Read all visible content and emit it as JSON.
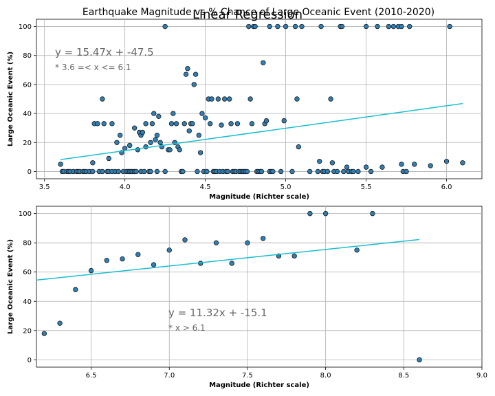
{
  "figure": {
    "suptitle": "Earthquake Magnitude vs % Chance of Large Oceanic Event (2010-2020)",
    "overlay_title": "Linear Regression"
  },
  "colors": {
    "marker_fill": "#2f7fb5",
    "marker_edge": "#1a1a1a",
    "regression": "#17becf",
    "annotation": "#666666",
    "grid": "#b0b0b0"
  },
  "chart_data": [
    {
      "type": "scatter",
      "title": "",
      "xlabel": "Magnitude (Richter scale)",
      "ylabel": "Large Oceanic Event (%)",
      "xlim": [
        3.45,
        6.22
      ],
      "ylim": [
        -5,
        105
      ],
      "xticks": [
        3.5,
        4.0,
        4.5,
        5.0,
        5.5,
        6.0
      ],
      "xtick_labels": [
        "3.5",
        "4.0",
        "4.5",
        "5.0",
        "5.5",
        "6.0"
      ],
      "yticks": [
        0,
        20,
        40,
        60,
        80,
        100
      ],
      "ytick_labels": [
        "0",
        "20",
        "40",
        "60",
        "80",
        "100"
      ],
      "grid": true,
      "regression": {
        "equation": "y = 15.47x + -47.5",
        "condition": "* 3.6 =< x <= 6.1",
        "slope": 15.47,
        "intercept": -47.5,
        "x_range": [
          3.6,
          6.1
        ]
      },
      "points": [
        [
          3.6,
          5
        ],
        [
          3.61,
          0
        ],
        [
          3.62,
          0
        ],
        [
          3.64,
          0
        ],
        [
          3.65,
          0
        ],
        [
          3.66,
          0
        ],
        [
          3.68,
          0
        ],
        [
          3.7,
          0
        ],
        [
          3.71,
          0
        ],
        [
          3.72,
          0
        ],
        [
          3.74,
          0
        ],
        [
          3.75,
          0
        ],
        [
          3.76,
          0
        ],
        [
          3.78,
          0
        ],
        [
          3.8,
          0
        ],
        [
          3.8,
          6
        ],
        [
          3.81,
          33
        ],
        [
          3.83,
          33
        ],
        [
          3.84,
          0
        ],
        [
          3.86,
          0
        ],
        [
          3.86,
          50
        ],
        [
          3.87,
          33
        ],
        [
          3.89,
          0
        ],
        [
          3.9,
          0
        ],
        [
          3.9,
          9
        ],
        [
          3.92,
          0
        ],
        [
          3.92,
          33
        ],
        [
          3.94,
          0
        ],
        [
          3.95,
          20
        ],
        [
          3.96,
          0
        ],
        [
          3.97,
          25
        ],
        [
          3.98,
          13
        ],
        [
          3.99,
          0
        ],
        [
          4.0,
          16
        ],
        [
          4.01,
          0
        ],
        [
          4.02,
          0
        ],
        [
          4.03,
          0
        ],
        [
          4.03,
          18
        ],
        [
          4.04,
          0
        ],
        [
          4.05,
          0
        ],
        [
          4.06,
          0
        ],
        [
          4.06,
          30
        ],
        [
          4.07,
          0
        ],
        [
          4.08,
          15
        ],
        [
          4.09,
          27
        ],
        [
          4.1,
          0
        ],
        [
          4.1,
          25
        ],
        [
          4.11,
          27
        ],
        [
          4.12,
          0
        ],
        [
          4.13,
          33
        ],
        [
          4.13,
          17
        ],
        [
          4.15,
          0
        ],
        [
          4.16,
          0
        ],
        [
          4.16,
          20
        ],
        [
          4.17,
          33
        ],
        [
          4.18,
          40
        ],
        [
          4.19,
          22
        ],
        [
          4.2,
          0
        ],
        [
          4.2,
          25
        ],
        [
          4.21,
          38
        ],
        [
          4.22,
          20
        ],
        [
          4.23,
          17
        ],
        [
          4.25,
          0
        ],
        [
          4.25,
          100
        ],
        [
          4.27,
          15
        ],
        [
          4.28,
          15
        ],
        [
          4.29,
          33
        ],
        [
          4.3,
          40
        ],
        [
          4.31,
          20
        ],
        [
          4.32,
          33
        ],
        [
          4.33,
          17
        ],
        [
          4.34,
          15
        ],
        [
          4.35,
          0
        ],
        [
          4.36,
          0
        ],
        [
          4.37,
          33
        ],
        [
          4.38,
          67
        ],
        [
          4.39,
          71
        ],
        [
          4.4,
          28
        ],
        [
          4.41,
          33
        ],
        [
          4.42,
          33
        ],
        [
          4.43,
          60
        ],
        [
          4.44,
          67
        ],
        [
          4.45,
          0
        ],
        [
          4.46,
          25
        ],
        [
          4.47,
          13
        ],
        [
          4.48,
          40
        ],
        [
          4.49,
          0
        ],
        [
          4.5,
          37
        ],
        [
          4.51,
          0
        ],
        [
          4.52,
          50
        ],
        [
          4.53,
          33
        ],
        [
          4.54,
          50
        ],
        [
          4.55,
          0
        ],
        [
          4.56,
          0
        ],
        [
          4.57,
          0
        ],
        [
          4.58,
          50
        ],
        [
          4.59,
          0
        ],
        [
          4.6,
          32
        ],
        [
          4.61,
          0
        ],
        [
          4.62,
          50
        ],
        [
          4.63,
          0
        ],
        [
          4.64,
          0
        ],
        [
          4.65,
          50
        ],
        [
          4.66,
          33
        ],
        [
          4.67,
          0
        ],
        [
          4.68,
          0
        ],
        [
          4.69,
          0
        ],
        [
          4.7,
          33
        ],
        [
          4.71,
          0
        ],
        [
          4.72,
          0
        ],
        [
          4.73,
          0
        ],
        [
          4.74,
          0
        ],
        [
          4.75,
          0
        ],
        [
          4.76,
          0
        ],
        [
          4.77,
          100
        ],
        [
          4.78,
          50
        ],
        [
          4.79,
          33
        ],
        [
          4.8,
          100
        ],
        [
          4.81,
          100
        ],
        [
          4.82,
          0
        ],
        [
          4.83,
          0
        ],
        [
          4.84,
          0
        ],
        [
          4.85,
          0
        ],
        [
          4.86,
          75
        ],
        [
          4.87,
          33
        ],
        [
          4.88,
          35
        ],
        [
          4.9,
          0
        ],
        [
          4.9,
          100
        ],
        [
          4.91,
          0
        ],
        [
          4.92,
          0
        ],
        [
          4.95,
          100
        ],
        [
          4.97,
          0
        ],
        [
          4.99,
          35
        ],
        [
          5.0,
          100
        ],
        [
          5.04,
          0
        ],
        [
          5.06,
          100
        ],
        [
          5.07,
          50
        ],
        [
          5.08,
          17
        ],
        [
          5.1,
          100
        ],
        [
          5.15,
          0
        ],
        [
          5.2,
          0
        ],
        [
          5.21,
          7
        ],
        [
          5.22,
          100
        ],
        [
          5.23,
          0
        ],
        [
          5.24,
          0
        ],
        [
          5.26,
          0
        ],
        [
          5.28,
          50
        ],
        [
          5.29,
          6
        ],
        [
          5.3,
          0
        ],
        [
          5.32,
          0
        ],
        [
          5.34,
          100
        ],
        [
          5.35,
          100
        ],
        [
          5.36,
          0
        ],
        [
          5.38,
          3
        ],
        [
          5.39,
          0
        ],
        [
          5.41,
          0
        ],
        [
          5.42,
          0
        ],
        [
          5.45,
          0
        ],
        [
          5.5,
          100
        ],
        [
          5.5,
          3
        ],
        [
          5.53,
          0
        ],
        [
          5.57,
          100
        ],
        [
          5.6,
          3
        ],
        [
          5.64,
          100
        ],
        [
          5.67,
          100
        ],
        [
          5.7,
          100
        ],
        [
          5.72,
          100
        ],
        [
          5.72,
          5
        ],
        [
          5.73,
          0
        ],
        [
          5.75,
          0
        ],
        [
          5.77,
          100
        ],
        [
          5.8,
          5
        ],
        [
          5.9,
          4
        ],
        [
          6.0,
          7
        ],
        [
          6.02,
          100
        ],
        [
          6.1,
          6
        ]
      ]
    },
    {
      "type": "scatter",
      "title": "",
      "xlabel": "Magnitude (Richter scale)",
      "ylabel": "Large Oceanic Event (%)",
      "xlim": [
        6.15,
        9.0
      ],
      "ylim": [
        -5,
        105
      ],
      "xticks": [
        6.5,
        7.0,
        7.5,
        8.0,
        8.5,
        9.0
      ],
      "xtick_labels": [
        "6.5",
        "7.0",
        "7.5",
        "8.0",
        "8.5",
        "9.0"
      ],
      "yticks": [
        0,
        20,
        40,
        60,
        80,
        100
      ],
      "ytick_labels": [
        "0",
        "20",
        "40",
        "60",
        "80",
        "100"
      ],
      "grid": true,
      "regression": {
        "equation": "y = 11.32x + -15.1",
        "condition": "* x > 6.1",
        "slope": 11.32,
        "intercept": -15.1,
        "x_range": [
          6.15,
          8.6
        ]
      },
      "points": [
        [
          6.2,
          18
        ],
        [
          6.3,
          25
        ],
        [
          6.4,
          48
        ],
        [
          6.5,
          61
        ],
        [
          6.6,
          68
        ],
        [
          6.7,
          69
        ],
        [
          6.8,
          72
        ],
        [
          6.9,
          65
        ],
        [
          7.0,
          75
        ],
        [
          7.1,
          82
        ],
        [
          7.2,
          66
        ],
        [
          7.3,
          80
        ],
        [
          7.4,
          66
        ],
        [
          7.5,
          80
        ],
        [
          7.6,
          83
        ],
        [
          7.7,
          71
        ],
        [
          7.8,
          71
        ],
        [
          7.9,
          100
        ],
        [
          8.0,
          100
        ],
        [
          8.2,
          75
        ],
        [
          8.3,
          100
        ],
        [
          8.6,
          0
        ]
      ]
    }
  ]
}
